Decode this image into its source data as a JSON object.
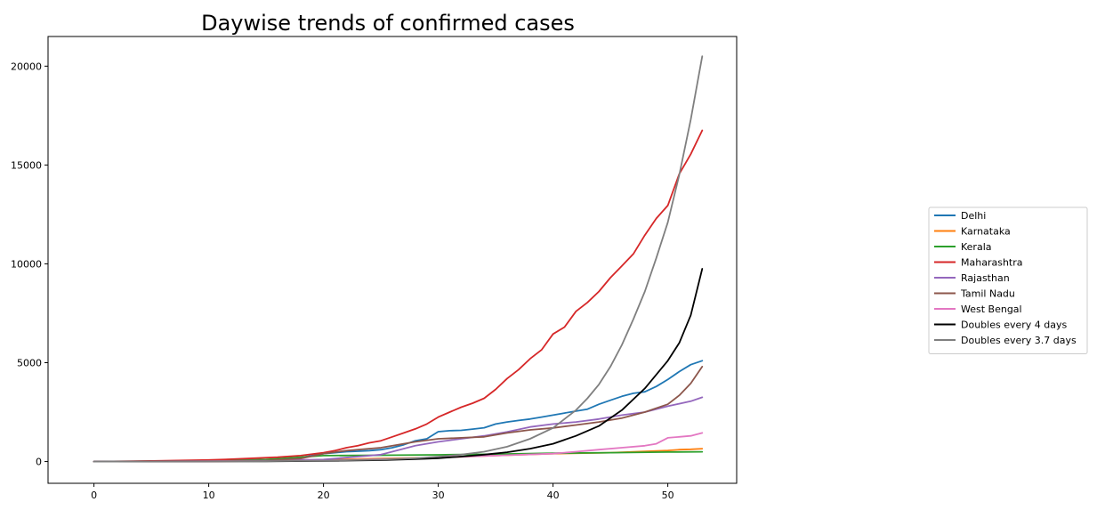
{
  "chart_data": {
    "type": "line",
    "title": "Daywise trends of confirmed cases",
    "xlabel": "",
    "ylabel": "",
    "xlim": [
      -4,
      56
    ],
    "ylim": [
      -1100,
      21500
    ],
    "xticks": [
      0,
      10,
      20,
      30,
      40,
      50
    ],
    "yticks": [
      0,
      5000,
      10000,
      15000,
      20000
    ],
    "grid": false,
    "legend_position": "right",
    "series": [
      {
        "name": "Delhi",
        "color": "#1f77b4",
        "x": [
          0,
          5,
          10,
          15,
          17,
          18,
          19,
          20,
          21,
          22,
          23,
          24,
          25,
          26,
          27,
          28,
          29,
          30,
          31,
          32,
          33,
          34,
          35,
          36,
          37,
          38,
          39,
          40,
          41,
          42,
          43,
          44,
          45,
          46,
          47,
          48,
          49,
          50,
          51,
          52,
          53
        ],
        "values": [
          0,
          10,
          20,
          50,
          100,
          200,
          300,
          400,
          450,
          500,
          520,
          550,
          600,
          700,
          850,
          1050,
          1150,
          1510,
          1560,
          1580,
          1640,
          1710,
          1900,
          2000,
          2080,
          2150,
          2250,
          2350,
          2450,
          2550,
          2650,
          2900,
          3100,
          3300,
          3450,
          3530,
          3800,
          4150,
          4550,
          4900,
          5100
        ]
      },
      {
        "name": "Karnataka",
        "color": "#ff7f0e",
        "x": [
          0,
          10,
          15,
          20,
          25,
          30,
          35,
          40,
          45,
          50,
          51,
          52,
          53
        ],
        "values": [
          0,
          10,
          30,
          90,
          150,
          200,
          300,
          400,
          450,
          560,
          600,
          620,
          650
        ]
      },
      {
        "name": "Kerala",
        "color": "#2ca02c",
        "x": [
          0,
          5,
          10,
          15,
          20,
          25,
          30,
          35,
          40,
          45,
          50,
          53
        ],
        "values": [
          0,
          10,
          40,
          100,
          300,
          320,
          340,
          370,
          420,
          450,
          480,
          495
        ]
      },
      {
        "name": "Maharashtra",
        "color": "#d62728",
        "x": [
          0,
          5,
          10,
          12,
          14,
          16,
          18,
          20,
          21,
          22,
          23,
          24,
          25,
          26,
          27,
          28,
          29,
          30,
          31,
          32,
          33,
          34,
          35,
          36,
          37,
          38,
          39,
          40,
          41,
          42,
          43,
          44,
          45,
          46,
          47,
          48,
          49,
          50,
          51,
          52,
          53
        ],
        "values": [
          0,
          30,
          80,
          120,
          170,
          220,
          300,
          450,
          550,
          700,
          800,
          950,
          1050,
          1250,
          1450,
          1650,
          1900,
          2250,
          2500,
          2750,
          2950,
          3200,
          3650,
          4200,
          4650,
          5200,
          5650,
          6450,
          6800,
          7600,
          8050,
          8600,
          9300,
          9900,
          10500,
          11450,
          12300,
          12950,
          14550,
          15550,
          16750
        ]
      },
      {
        "name": "Rajasthan",
        "color": "#9467bd",
        "x": [
          0,
          10,
          15,
          20,
          25,
          28,
          30,
          32,
          34,
          36,
          38,
          40,
          42,
          44,
          46,
          48,
          50,
          52,
          53
        ],
        "values": [
          0,
          20,
          50,
          100,
          350,
          800,
          1000,
          1150,
          1300,
          1500,
          1750,
          1900,
          2000,
          2150,
          2350,
          2500,
          2800,
          3050,
          3250
        ]
      },
      {
        "name": "Tamil Nadu",
        "color": "#8c564b",
        "x": [
          0,
          10,
          15,
          18,
          20,
          22,
          25,
          28,
          30,
          32,
          34,
          36,
          38,
          40,
          42,
          44,
          46,
          48,
          50,
          51,
          52,
          53
        ],
        "values": [
          0,
          10,
          50,
          150,
          400,
          550,
          700,
          1000,
          1150,
          1200,
          1250,
          1450,
          1600,
          1700,
          1850,
          2000,
          2200,
          2500,
          2900,
          3350,
          3950,
          4800
        ]
      },
      {
        "name": "West Bengal",
        "color": "#e377c2",
        "x": [
          0,
          10,
          20,
          30,
          35,
          40,
          42,
          44,
          46,
          48,
          49,
          50,
          51,
          52,
          53
        ],
        "values": [
          0,
          10,
          50,
          200,
          300,
          400,
          500,
          600,
          700,
          800,
          900,
          1200,
          1250,
          1300,
          1450
        ]
      },
      {
        "name": "Doubles every 4 days",
        "color": "#000000",
        "x": [
          0,
          5,
          10,
          15,
          20,
          25,
          28,
          30,
          32,
          34,
          36,
          38,
          40,
          42,
          44,
          46,
          48,
          50,
          51,
          52,
          53
        ],
        "values": [
          0,
          2,
          6,
          13,
          30,
          70,
          120,
          170,
          250,
          350,
          470,
          650,
          900,
          1300,
          1800,
          2600,
          3700,
          5100,
          6000,
          7400,
          9750
        ]
      },
      {
        "name": "Doubles every 3.7 days",
        "color": "#7f7f7f",
        "x": [
          0,
          5,
          10,
          15,
          20,
          25,
          28,
          30,
          32,
          34,
          36,
          38,
          40,
          42,
          43,
          44,
          45,
          46,
          47,
          48,
          49,
          50,
          51,
          52,
          53
        ],
        "values": [
          0,
          3,
          8,
          19,
          50,
          100,
          170,
          250,
          350,
          500,
          750,
          1150,
          1700,
          2600,
          3200,
          3900,
          4800,
          5900,
          7200,
          8600,
          10300,
          12100,
          14500,
          17300,
          20500
        ]
      }
    ]
  }
}
